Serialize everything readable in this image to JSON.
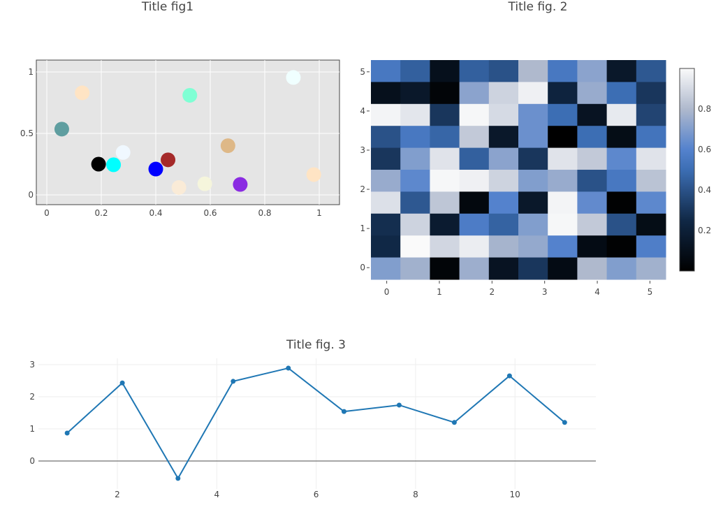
{
  "chart_data": [
    {
      "type": "scatter",
      "title": "Title fig1",
      "xlabel": "",
      "ylabel": "",
      "xlim": [
        -0.05,
        1.06
      ],
      "ylim": [
        -0.08,
        1.08
      ],
      "xticks": [
        "0",
        "0.2",
        "0.4",
        "0.6",
        "0.8",
        "1"
      ],
      "yticks": [
        "0",
        "0.5",
        "1"
      ],
      "background": "#e5e5e5",
      "grid": true,
      "points": [
        {
          "x": 0.055,
          "y": 0.535,
          "color": "#5f9ea0"
        },
        {
          "x": 0.13,
          "y": 0.83,
          "color": "#ffe4c4"
        },
        {
          "x": 0.19,
          "y": 0.25,
          "color": "#000000"
        },
        {
          "x": 0.245,
          "y": 0.245,
          "color": "#00ffff"
        },
        {
          "x": 0.28,
          "y": 0.345,
          "color": "#f0f8ff"
        },
        {
          "x": 0.4,
          "y": 0.21,
          "color": "#0000ff"
        },
        {
          "x": 0.445,
          "y": 0.285,
          "color": "#a52a2a"
        },
        {
          "x": 0.485,
          "y": 0.06,
          "color": "#faebd7"
        },
        {
          "x": 0.525,
          "y": 0.81,
          "color": "#7fffd4"
        },
        {
          "x": 0.58,
          "y": 0.09,
          "color": "#f5f5dc"
        },
        {
          "x": 0.665,
          "y": 0.4,
          "color": "#deb887"
        },
        {
          "x": 0.71,
          "y": 0.085,
          "color": "#8a2be2"
        },
        {
          "x": 0.905,
          "y": 0.955,
          "color": "#f0ffff"
        },
        {
          "x": 0.98,
          "y": 0.165,
          "color": "#ffe4c4"
        }
      ]
    },
    {
      "type": "heatmap",
      "title": "Title fig. 2",
      "xticks": [
        "0",
        "1",
        "2",
        "3",
        "4",
        "5"
      ],
      "yticks": [
        "0",
        "1",
        "2",
        "3",
        "4",
        "5"
      ],
      "xlim": [
        -0.3,
        5.3
      ],
      "ylim": [
        -0.3,
        5.3
      ],
      "colorscale": "Blues (black-blue-white)",
      "colorbar_ticks": [
        "0.2",
        "0.4",
        "0.6",
        "0.8"
      ],
      "zlim": [
        0,
        1
      ],
      "rows_top_to_bottom": [
        [
          0.55,
          0.45,
          0.1,
          0.45,
          0.4,
          0.8,
          0.55,
          0.72,
          0.15,
          0.42
        ],
        [
          0.1,
          0.15,
          0.03,
          0.72,
          0.88,
          0.97,
          0.22,
          0.75,
          0.5,
          0.3
        ],
        [
          0.98,
          0.94,
          0.3,
          0.99,
          0.9,
          0.65,
          0.5,
          0.12,
          0.95,
          0.35
        ],
        [
          0.4,
          0.55,
          0.47,
          0.85,
          0.15,
          0.65,
          0.0,
          0.5,
          0.08,
          0.53
        ],
        [
          0.3,
          0.7,
          0.93,
          0.45,
          0.72,
          0.3,
          0.93,
          0.85,
          0.62,
          0.93
        ],
        [
          0.75,
          0.62,
          0.99,
          0.97,
          0.88,
          0.7,
          0.75,
          0.4,
          0.55,
          0.83
        ],
        [
          0.92,
          0.42,
          0.84,
          0.05,
          0.6,
          0.15,
          0.98,
          0.63,
          0.01,
          0.62
        ],
        [
          0.27,
          0.88,
          0.17,
          0.57,
          0.46,
          0.7,
          0.99,
          0.85,
          0.4,
          0.08
        ],
        [
          0.25,
          1.0,
          0.89,
          0.96,
          0.78,
          0.74,
          0.6,
          0.07,
          0.01,
          0.58
        ],
        [
          0.7,
          0.77,
          0.03,
          0.76,
          0.12,
          0.3,
          0.07,
          0.8,
          0.7,
          0.77
        ]
      ]
    },
    {
      "type": "line",
      "title": "Title fig. 3",
      "xlabel": "",
      "ylabel": "",
      "xticks": [
        "2",
        "4",
        "6",
        "8",
        "10"
      ],
      "yticks": [
        "0",
        "1",
        "2",
        "3"
      ],
      "line_color": "#1f77b4",
      "x": [
        0.99,
        2.1,
        3.22,
        4.33,
        5.44,
        6.56,
        7.67,
        8.78,
        9.89,
        11.0
      ],
      "y": [
        0.87,
        2.43,
        -0.54,
        2.48,
        2.89,
        1.54,
        1.74,
        1.2,
        2.65,
        1.2
      ]
    }
  ]
}
